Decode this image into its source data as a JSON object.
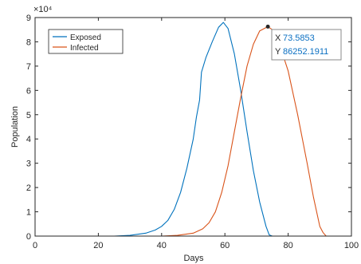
{
  "chart_data": {
    "type": "line",
    "title": "",
    "xlabel": "Days",
    "ylabel": "Population",
    "xlim": [
      0,
      100
    ],
    "ylim": [
      0,
      9
    ],
    "y_exponent_label": "×10⁴",
    "x_ticks": [
      0,
      20,
      40,
      60,
      80,
      100
    ],
    "y_ticks": [
      0,
      1,
      2,
      3,
      4,
      5,
      6,
      7,
      8,
      9
    ],
    "grid": false,
    "legend_position": "top-left",
    "series": [
      {
        "name": "Exposed",
        "color": "#0072bd",
        "x": [
          0,
          25,
          30,
          35,
          38,
          40,
          42,
          44,
          46,
          48,
          50,
          51,
          52,
          52.6,
          54,
          56,
          58,
          59.5,
          61,
          63,
          65,
          67,
          69,
          71,
          73,
          74,
          75,
          100
        ],
        "y": [
          0,
          0,
          0.03,
          0.12,
          0.25,
          0.4,
          0.65,
          1.1,
          1.8,
          2.8,
          4.0,
          4.9,
          5.6,
          6.75,
          7.35,
          8.0,
          8.6,
          8.8,
          8.55,
          7.5,
          6.0,
          4.3,
          2.7,
          1.4,
          0.4,
          0.05,
          0,
          0
        ]
      },
      {
        "name": "Infected",
        "color": "#d95319",
        "x": [
          0,
          40,
          45,
          50,
          53,
          55,
          57,
          59,
          61,
          63,
          65,
          67,
          69,
          71,
          73.59,
          75,
          77,
          80,
          83,
          86,
          88,
          90,
          91,
          92,
          100
        ],
        "y": [
          0,
          0,
          0.03,
          0.12,
          0.3,
          0.55,
          1.0,
          1.8,
          2.9,
          4.3,
          5.7,
          7.0,
          7.9,
          8.45,
          8.6253,
          8.5,
          8.0,
          6.8,
          5.0,
          3.0,
          1.6,
          0.4,
          0.15,
          0,
          0
        ]
      }
    ],
    "datatip": {
      "x_label": "X",
      "x_value": "73.5853",
      "y_label": "Y",
      "y_value": "86252.1911",
      "x": 73.5853,
      "y": 8.62521911
    }
  }
}
